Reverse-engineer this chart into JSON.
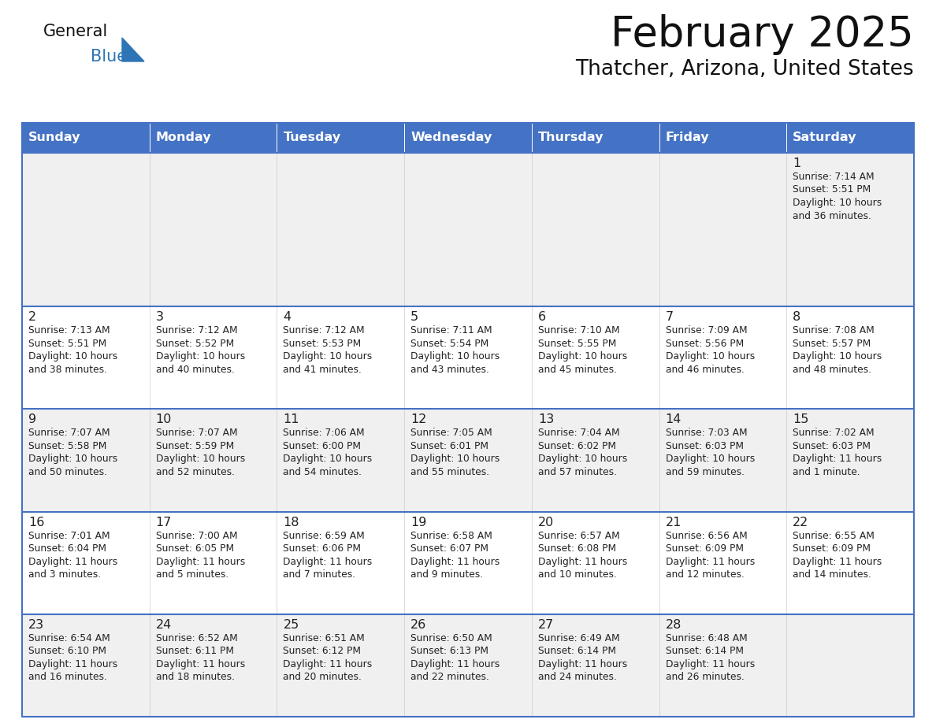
{
  "title": "February 2025",
  "subtitle": "Thatcher, Arizona, United States",
  "days_of_week": [
    "Sunday",
    "Monday",
    "Tuesday",
    "Wednesday",
    "Thursday",
    "Friday",
    "Saturday"
  ],
  "header_bg": "#4472C4",
  "header_text": "#FFFFFF",
  "cell_bg_odd": "#F0F0F0",
  "cell_bg_even": "#FFFFFF",
  "cell_border": "#4472C4",
  "day_num_color": "#222222",
  "info_text_color": "#222222",
  "title_color": "#111111",
  "logo_general_color": "#111111",
  "logo_blue_color": "#2E75B6",
  "logo_triangle_color": "#2E75B6",
  "weeks": [
    [
      null,
      null,
      null,
      null,
      null,
      null,
      1
    ],
    [
      2,
      3,
      4,
      5,
      6,
      7,
      8
    ],
    [
      9,
      10,
      11,
      12,
      13,
      14,
      15
    ],
    [
      16,
      17,
      18,
      19,
      20,
      21,
      22
    ],
    [
      23,
      24,
      25,
      26,
      27,
      28,
      null
    ]
  ],
  "row_heights": [
    1.6,
    1.0,
    1.0,
    1.0,
    1.0
  ],
  "day_data": {
    "1": {
      "sunrise": "7:14 AM",
      "sunset": "5:51 PM",
      "daylight_hours": "10 hours",
      "daylight_mins": "and 36 minutes."
    },
    "2": {
      "sunrise": "7:13 AM",
      "sunset": "5:51 PM",
      "daylight_hours": "10 hours",
      "daylight_mins": "and 38 minutes."
    },
    "3": {
      "sunrise": "7:12 AM",
      "sunset": "5:52 PM",
      "daylight_hours": "10 hours",
      "daylight_mins": "and 40 minutes."
    },
    "4": {
      "sunrise": "7:12 AM",
      "sunset": "5:53 PM",
      "daylight_hours": "10 hours",
      "daylight_mins": "and 41 minutes."
    },
    "5": {
      "sunrise": "7:11 AM",
      "sunset": "5:54 PM",
      "daylight_hours": "10 hours",
      "daylight_mins": "and 43 minutes."
    },
    "6": {
      "sunrise": "7:10 AM",
      "sunset": "5:55 PM",
      "daylight_hours": "10 hours",
      "daylight_mins": "and 45 minutes."
    },
    "7": {
      "sunrise": "7:09 AM",
      "sunset": "5:56 PM",
      "daylight_hours": "10 hours",
      "daylight_mins": "and 46 minutes."
    },
    "8": {
      "sunrise": "7:08 AM",
      "sunset": "5:57 PM",
      "daylight_hours": "10 hours",
      "daylight_mins": "and 48 minutes."
    },
    "9": {
      "sunrise": "7:07 AM",
      "sunset": "5:58 PM",
      "daylight_hours": "10 hours",
      "daylight_mins": "and 50 minutes."
    },
    "10": {
      "sunrise": "7:07 AM",
      "sunset": "5:59 PM",
      "daylight_hours": "10 hours",
      "daylight_mins": "and 52 minutes."
    },
    "11": {
      "sunrise": "7:06 AM",
      "sunset": "6:00 PM",
      "daylight_hours": "10 hours",
      "daylight_mins": "and 54 minutes."
    },
    "12": {
      "sunrise": "7:05 AM",
      "sunset": "6:01 PM",
      "daylight_hours": "10 hours",
      "daylight_mins": "and 55 minutes."
    },
    "13": {
      "sunrise": "7:04 AM",
      "sunset": "6:02 PM",
      "daylight_hours": "10 hours",
      "daylight_mins": "and 57 minutes."
    },
    "14": {
      "sunrise": "7:03 AM",
      "sunset": "6:03 PM",
      "daylight_hours": "10 hours",
      "daylight_mins": "and 59 minutes."
    },
    "15": {
      "sunrise": "7:02 AM",
      "sunset": "6:03 PM",
      "daylight_hours": "11 hours",
      "daylight_mins": "and 1 minute."
    },
    "16": {
      "sunrise": "7:01 AM",
      "sunset": "6:04 PM",
      "daylight_hours": "11 hours",
      "daylight_mins": "and 3 minutes."
    },
    "17": {
      "sunrise": "7:00 AM",
      "sunset": "6:05 PM",
      "daylight_hours": "11 hours",
      "daylight_mins": "and 5 minutes."
    },
    "18": {
      "sunrise": "6:59 AM",
      "sunset": "6:06 PM",
      "daylight_hours": "11 hours",
      "daylight_mins": "and 7 minutes."
    },
    "19": {
      "sunrise": "6:58 AM",
      "sunset": "6:07 PM",
      "daylight_hours": "11 hours",
      "daylight_mins": "and 9 minutes."
    },
    "20": {
      "sunrise": "6:57 AM",
      "sunset": "6:08 PM",
      "daylight_hours": "11 hours",
      "daylight_mins": "and 10 minutes."
    },
    "21": {
      "sunrise": "6:56 AM",
      "sunset": "6:09 PM",
      "daylight_hours": "11 hours",
      "daylight_mins": "and 12 minutes."
    },
    "22": {
      "sunrise": "6:55 AM",
      "sunset": "6:09 PM",
      "daylight_hours": "11 hours",
      "daylight_mins": "and 14 minutes."
    },
    "23": {
      "sunrise": "6:54 AM",
      "sunset": "6:10 PM",
      "daylight_hours": "11 hours",
      "daylight_mins": "and 16 minutes."
    },
    "24": {
      "sunrise": "6:52 AM",
      "sunset": "6:11 PM",
      "daylight_hours": "11 hours",
      "daylight_mins": "and 18 minutes."
    },
    "25": {
      "sunrise": "6:51 AM",
      "sunset": "6:12 PM",
      "daylight_hours": "11 hours",
      "daylight_mins": "and 20 minutes."
    },
    "26": {
      "sunrise": "6:50 AM",
      "sunset": "6:13 PM",
      "daylight_hours": "11 hours",
      "daylight_mins": "and 22 minutes."
    },
    "27": {
      "sunrise": "6:49 AM",
      "sunset": "6:14 PM",
      "daylight_hours": "11 hours",
      "daylight_mins": "and 24 minutes."
    },
    "28": {
      "sunrise": "6:48 AM",
      "sunset": "6:14 PM",
      "daylight_hours": "11 hours",
      "daylight_mins": "and 26 minutes."
    }
  }
}
